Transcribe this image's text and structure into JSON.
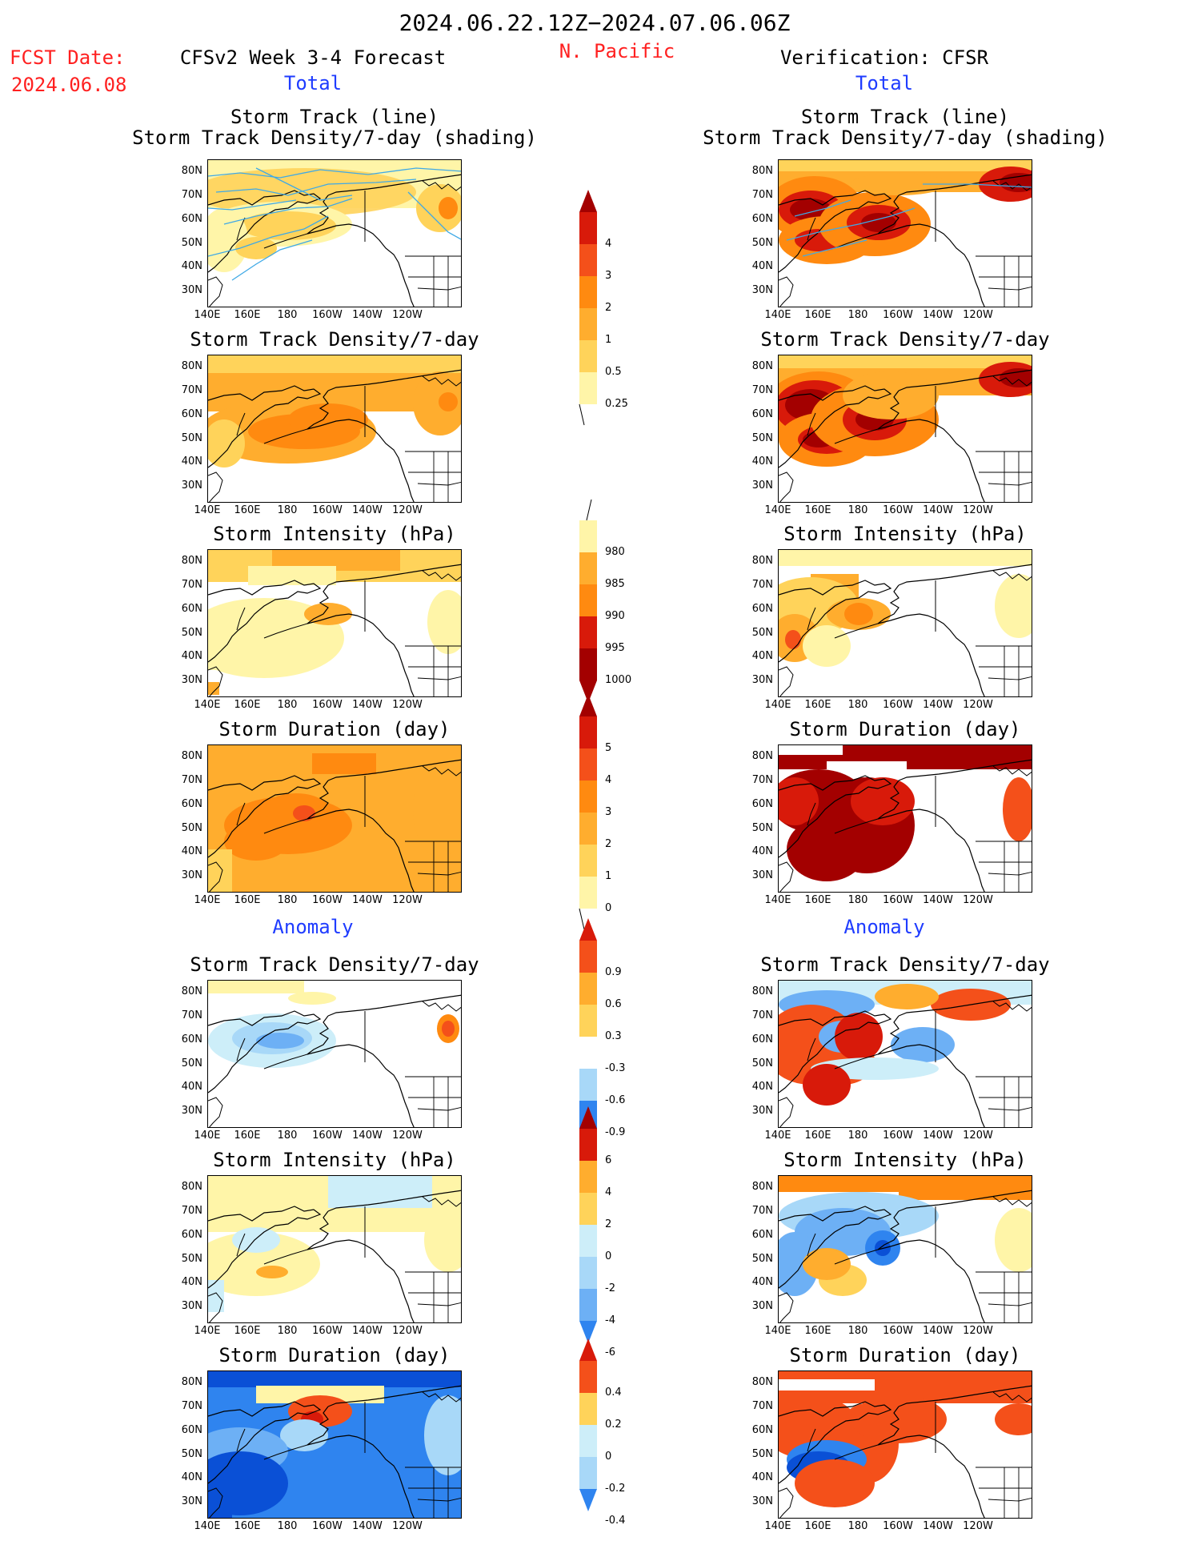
{
  "header": {
    "date_range": "2024.06.22.12Z−2024.07.06.06Z",
    "fcst_label": "FCST Date:",
    "fcst_date": "2024.06.08",
    "left_title": "CFSv2 Week 3-4 Forecast",
    "region": "N. Pacific",
    "right_title": "Verification: CFSR",
    "left_total": "Total",
    "right_total": "Total",
    "left_anomaly": "Anomaly",
    "right_anomaly": "Anomaly"
  },
  "panel_titles": {
    "track_line": "Storm Track (line)",
    "track_shading": "Storm Track Density/7-day (shading)",
    "density": "Storm Track Density/7-day",
    "intensity": "Storm Intensity (hPa)",
    "duration": "Storm Duration (day)"
  },
  "axes": {
    "lat_labels": [
      "80N",
      "70N",
      "60N",
      "50N",
      "40N",
      "30N"
    ],
    "lon_labels": [
      "140E",
      "160E",
      "180",
      "160W",
      "140W",
      "120W"
    ]
  },
  "colorbars": {
    "density": [
      "0.25",
      "0.5",
      "1",
      "2",
      "3",
      "4"
    ],
    "intensity": [
      "980",
      "985",
      "990",
      "995",
      "1000"
    ],
    "duration": [
      "0",
      "1",
      "2",
      "3",
      "4",
      "5"
    ],
    "density_anom": [
      "-0.9",
      "-0.6",
      "-0.3",
      "0.3",
      "0.6",
      "0.9"
    ],
    "intensity_anom": [
      "-6",
      "-4",
      "-2",
      "0",
      "2",
      "4",
      "6"
    ],
    "duration_anom": [
      "-0.4",
      "-0.2",
      "0",
      "0.2",
      "0.4"
    ]
  },
  "colors": {
    "warm": [
      "#fff5a8",
      "#ffd35a",
      "#ffad2e",
      "#ff8a10",
      "#f4501a",
      "#d81a0a",
      "#a30000"
    ],
    "cool": [
      "#0a50d6",
      "#2f84ef",
      "#6db0f5",
      "#a8d8f8",
      "#cdeef9"
    ],
    "track_line": "#3fa9e6"
  }
}
